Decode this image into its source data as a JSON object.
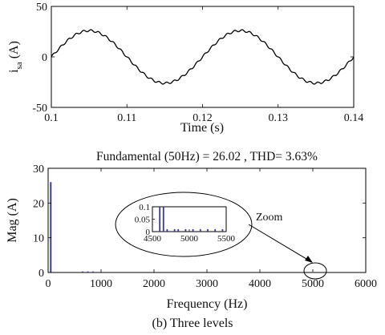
{
  "chart_data": [
    {
      "type": "line",
      "xlabel": "Time (s)",
      "ylabel_main": "i",
      "ylabel_sub": "sa",
      "ylabel_unit": " (A)",
      "xlim": [
        0.1,
        0.14
      ],
      "ylim": [
        -50,
        50
      ],
      "xticks": [
        "0.1",
        "0.11",
        "0.12",
        "0.13",
        "0.14"
      ],
      "yticks": [
        "50",
        "0",
        "-50"
      ],
      "series": [
        {
          "frequency_hz": 50,
          "amplitude": 26.02,
          "phase_deg": 0,
          "ripple_amplitude": 1.0,
          "ripple_frequency_hz": 1000,
          "color": "#000000"
        }
      ]
    },
    {
      "type": "bar",
      "title": "Fundamental (50Hz) = 26.02 , THD= 3.63%",
      "xlabel": "Frequency (Hz)",
      "ylabel": "Mag (A)",
      "xlim": [
        0,
        6000
      ],
      "ylim": [
        0,
        30
      ],
      "xticks": [
        "0",
        "1000",
        "2000",
        "3000",
        "4000",
        "5000",
        "6000"
      ],
      "yticks": [
        "30",
        "20",
        "10",
        "0"
      ],
      "color": "#3b3b8f",
      "bars": [
        {
          "x": 50,
          "y": 26.02
        },
        {
          "x": 650,
          "y": 0.3
        },
        {
          "x": 750,
          "y": 0.3
        },
        {
          "x": 850,
          "y": 0.3
        },
        {
          "x": 5000,
          "y": 0.1
        }
      ],
      "inset": {
        "xlim": [
          4500,
          5500
        ],
        "ylim": [
          0,
          0.1
        ],
        "xticks": [
          "4500",
          "5000",
          "5500"
        ],
        "yticks": [
          "0.1",
          "0.05",
          "0"
        ],
        "bars": [
          {
            "x": 4600,
            "y": 0.1
          },
          {
            "x": 4650,
            "y": 0.1
          },
          {
            "x": 4700,
            "y": 0.01
          },
          {
            "x": 4800,
            "y": 0.01
          },
          {
            "x": 4850,
            "y": 0.01
          },
          {
            "x": 4950,
            "y": 0.01
          },
          {
            "x": 5050,
            "y": 0.01
          },
          {
            "x": 5150,
            "y": 0.01
          },
          {
            "x": 5250,
            "y": 0.01
          },
          {
            "x": 5350,
            "y": 0.01
          },
          {
            "x": 5450,
            "y": 0.01
          }
        ]
      },
      "annotation": "Zoom"
    }
  ],
  "caption": "(b) Three levels"
}
